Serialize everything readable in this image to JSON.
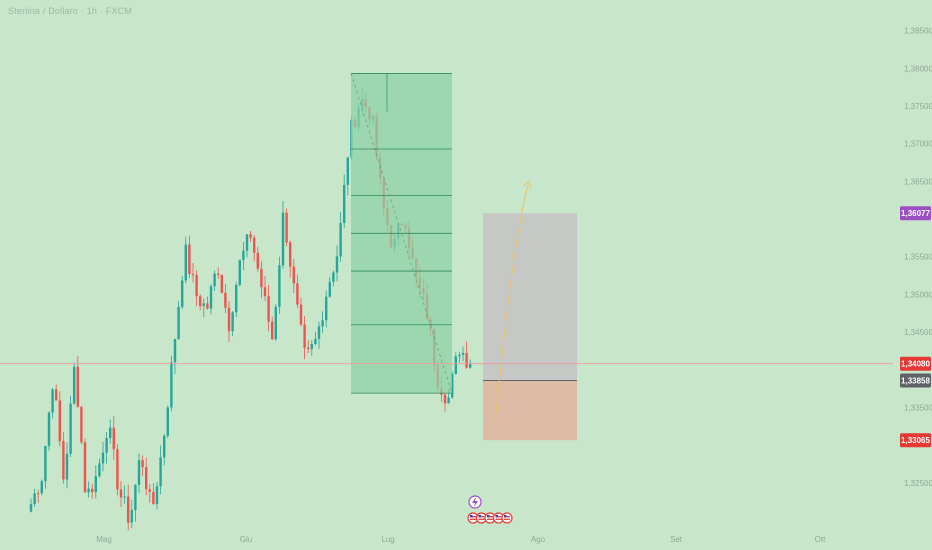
{
  "header": {
    "title": "Sterlina / Dollaro · 1h · FXCM"
  },
  "price_axis": {
    "min": 1.319,
    "max": 1.388,
    "ticks": [
      "1,38500",
      "1,38000",
      "1,37500",
      "1,37000",
      "1,36500",
      "1,35500",
      "1,35000",
      "1,34500",
      "1,33500",
      "1,32500"
    ],
    "tick_values": [
      1.385,
      1.38,
      1.375,
      1.37,
      1.365,
      1.355,
      1.35,
      1.345,
      1.335,
      1.325
    ]
  },
  "badges": [
    {
      "label": "1,36077",
      "value": 1.36077,
      "color": "#9c4fc4",
      "name": "badge-target"
    },
    {
      "label": "1,34080",
      "value": 1.3408,
      "color": "#e53935",
      "name": "badge-current-price"
    },
    {
      "label": "1,33858",
      "value": 1.33858,
      "color": "#5f6368",
      "name": "badge-entry"
    },
    {
      "label": "1,33065",
      "value": 1.33065,
      "color": "#e53935",
      "name": "badge-stop"
    }
  ],
  "time_axis": {
    "labels": [
      "Mag",
      "Giu",
      "Lug",
      "Ago",
      "Set",
      "Ott"
    ]
  },
  "colors": {
    "up": "#26a69a",
    "down": "#ef5350",
    "fib_box": "#8fd1a5",
    "target_box": "#c4c4c4",
    "stop_box": "#e0b6a0",
    "price_line": "#ef9a9a"
  },
  "events": {
    "flash_icon": "flash-icon",
    "flags": [
      "us-flag-icon",
      "us-flag-icon",
      "us-flag-icon",
      "us-flag-icon",
      "us-flag-icon"
    ]
  },
  "chart_data": {
    "type": "candlestick",
    "title": "Sterlina / Dollaro · 1h · FXCM",
    "symbol": "GBPUSD",
    "current_price": 1.3408,
    "close_path": [
      1.3222,
      1.326,
      1.339,
      1.325,
      1.341,
      1.323,
      1.326,
      1.333,
      1.324,
      1.32,
      1.329,
      1.321,
      1.33,
      1.343,
      1.356,
      1.35,
      1.348,
      1.354,
      1.346,
      1.354,
      1.358,
      1.351,
      1.344,
      1.361,
      1.35,
      1.341,
      1.344,
      1.351,
      1.356,
      1.371,
      1.376,
      1.374,
      1.362,
      1.356,
      1.361,
      1.352,
      1.348,
      1.339,
      1.336,
      1.343,
      1.3408
    ],
    "fib_box": {
      "price_high": 1.3793,
      "price_low": 1.3369
    },
    "position": {
      "target": 1.36077,
      "entry": 1.33858,
      "stop": 1.33065
    }
  }
}
